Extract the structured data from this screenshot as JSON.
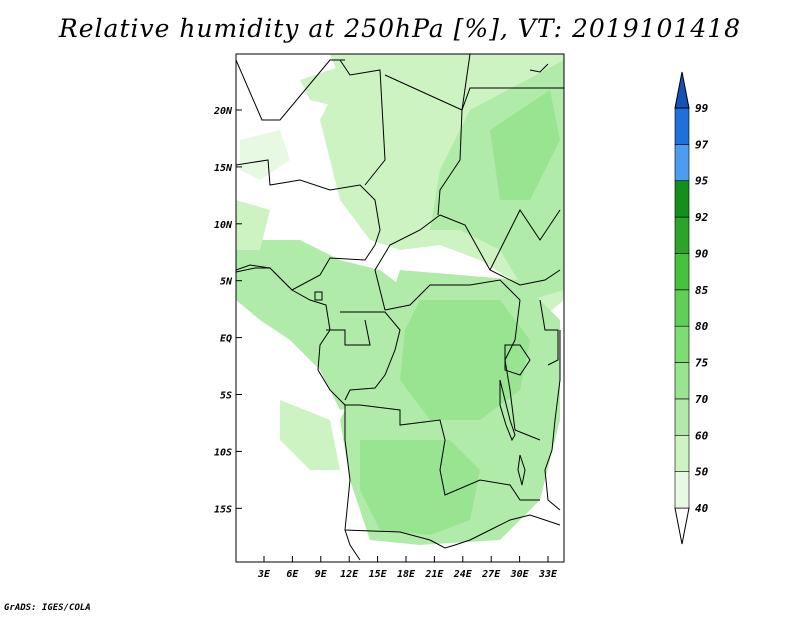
{
  "title": "Relative humidity at 250hPa [%], VT: 2019101418",
  "credit": "GrADS: IGES/COLA",
  "map": {
    "lat_labels": [
      "20N",
      "15N",
      "10N",
      "5N",
      "EQ",
      "5S",
      "10S",
      "15S"
    ],
    "lon_labels": [
      "3E",
      "6E",
      "9E",
      "12E",
      "15E",
      "18E",
      "21E",
      "24E",
      "27E",
      "30E",
      "33E"
    ]
  },
  "colorbar": {
    "levels": [
      "40",
      "50",
      "60",
      "70",
      "75",
      "80",
      "85",
      "90",
      "92",
      "95",
      "97",
      "99"
    ],
    "colors": [
      "#e8f9e3",
      "#cdf3c3",
      "#b1ebaa",
      "#98e491",
      "#7ddc74",
      "#5fcf57",
      "#45c33a",
      "#2ba428",
      "#14901a",
      "#4a9df0",
      "#1f6fdc",
      "#1552b8"
    ]
  }
}
